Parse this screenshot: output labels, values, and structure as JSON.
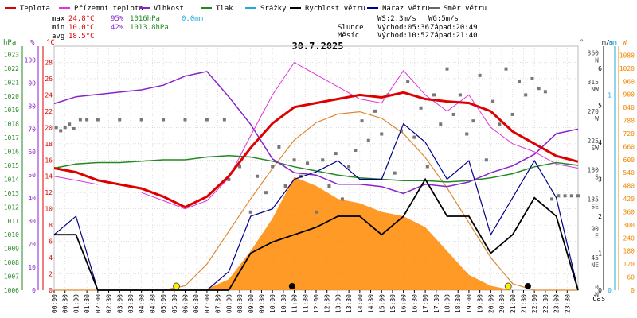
{
  "chart_data": {
    "type": "line",
    "title": "30.7.2025",
    "legend": [
      {
        "name": "Teplota",
        "color": "#dd0000"
      },
      {
        "name": "Přízemní teplota",
        "color": "#dd33dd"
      },
      {
        "name": "Vlhkost",
        "color": "#8822cc"
      },
      {
        "name": "Tlak",
        "color": "#228822"
      },
      {
        "name": "Srážky",
        "color": "#22aadd"
      },
      {
        "name": "Rychlost větru",
        "color": "#000000"
      },
      {
        "name": "Náraz větru",
        "color": "#000088"
      },
      {
        "name": "Směr větru",
        "color": "#666666"
      }
    ],
    "stats": [
      {
        "label": "max",
        "temp": "24.8°C",
        "hum": "95%",
        "pres": "1016hPa",
        "rain": "0.0mm"
      },
      {
        "label": "min",
        "temp": "10.0°C",
        "hum": "42%",
        "pres": "1013.8hPa",
        "rain": ""
      },
      {
        "label": "avg",
        "temp": "18.5°C",
        "hum": "",
        "pres": "",
        "rain": ""
      }
    ],
    "wind_info": {
      "ws": "WS:2.3m/s",
      "wg": "WG:5m/s"
    },
    "sun_info": {
      "label": "Slunce",
      "rise": "Východ:05:36",
      "set": "Západ:20:49"
    },
    "moon_info": {
      "label": "Měsíc",
      "rise": "Východ:10:52",
      "set": "Západ:21:40"
    },
    "axes": {
      "hpa": {
        "label": "hPa",
        "color": "#228822",
        "ticks": [
          1006,
          1007,
          1008,
          1009,
          1010,
          1011,
          1012,
          1013,
          1014,
          1015,
          1016,
          1017,
          1018,
          1019,
          1020,
          1021,
          1022,
          1023
        ]
      },
      "percent": {
        "label": "%",
        "color": "#8822cc",
        "ticks": [
          0,
          10,
          20,
          30,
          40,
          50,
          60,
          70,
          80,
          90,
          100
        ]
      },
      "celsius": {
        "label": "°C",
        "color": "#dd0000",
        "ticks": [
          0,
          2,
          4,
          6,
          8,
          10,
          12,
          14,
          16,
          18,
          20,
          22,
          24,
          26,
          28
        ]
      },
      "direction": {
        "label": "°",
        "color": "#444444",
        "ticks": [
          {
            "deg": "0",
            "dir": "N"
          },
          {
            "deg": "45",
            "dir": "NE"
          },
          {
            "deg": "90",
            "dir": "E"
          },
          {
            "deg": "135",
            "dir": "SE"
          },
          {
            "deg": "180",
            "dir": "S"
          },
          {
            "deg": "225",
            "dir": "SW"
          },
          {
            "deg": "270",
            "dir": "W"
          },
          {
            "deg": "315",
            "dir": "NW"
          },
          {
            "deg": "360",
            "dir": "N"
          }
        ]
      },
      "ms": {
        "label": "m/s",
        "color": "#000000",
        "ticks": [
          0,
          1,
          2,
          3,
          4,
          5,
          6
        ]
      },
      "mm": {
        "label": "mm",
        "color": "#22aadd",
        "ticks": [
          0,
          1
        ]
      },
      "w": {
        "label": "W",
        "color": "#ee8800",
        "ticks": [
          0,
          60,
          120,
          180,
          240,
          300,
          360,
          420,
          480,
          540,
          600,
          660,
          720,
          780,
          840,
          900,
          960,
          1020,
          1080
        ]
      },
      "x_label": "čas",
      "x_ticks": [
        "00:00",
        "00:30",
        "01:00",
        "01:30",
        "02:00",
        "02:30",
        "03:00",
        "03:30",
        "04:00",
        "04:30",
        "05:00",
        "05:30",
        "06:00",
        "06:30",
        "07:00",
        "07:30",
        "08:00",
        "08:30",
        "09:00",
        "09:30",
        "10:00",
        "10:30",
        "11:00",
        "11:30",
        "12:00",
        "12:30",
        "13:00",
        "13:30",
        "14:00",
        "14:30",
        "15:00",
        "15:30",
        "16:00",
        "16:30",
        "17:00",
        "17:30",
        "18:00",
        "18:30",
        "19:00",
        "19:30",
        "20:00",
        "20:30",
        "21:00",
        "21:30",
        "22:00",
        "22:30",
        "23:00",
        "23:30"
      ]
    },
    "hours": [
      0,
      1,
      2,
      3,
      4,
      5,
      6,
      7,
      8,
      9,
      10,
      11,
      12,
      13,
      14,
      15,
      16,
      17,
      18,
      19,
      20,
      21,
      22,
      23,
      24
    ],
    "series": [
      {
        "name": "Teplota",
        "unit": "°C",
        "values": [
          15,
          14.5,
          13.5,
          13,
          12.5,
          11.5,
          10.2,
          11.5,
          14,
          17.5,
          20.5,
          22.5,
          23,
          23.5,
          24,
          23.7,
          24.3,
          23.5,
          23.2,
          23,
          22,
          19.5,
          18,
          16.5,
          15.8
        ]
      },
      {
        "name": "Přízemní teplota",
        "unit": "°C",
        "values": [
          14,
          13.5,
          13,
          null,
          12,
          11,
          10,
          11,
          13.8,
          19,
          24,
          28,
          26.5,
          25,
          23.5,
          23,
          27,
          24,
          22,
          24,
          20,
          18,
          17,
          15.5,
          15
        ]
      },
      {
        "name": "Vlhkost",
        "unit": "%",
        "values": [
          81,
          84,
          85,
          86,
          87,
          89,
          93,
          95,
          84,
          72,
          57,
          51,
          50,
          46,
          46,
          45,
          42,
          46,
          45,
          47,
          51,
          54,
          59,
          68,
          70
        ]
      },
      {
        "name": "Tlak",
        "unit": "hPa",
        "values": [
          1014.8,
          1015.1,
          1015.2,
          1015.2,
          1015.3,
          1015.4,
          1015.4,
          1015.6,
          1015.7,
          1015.6,
          1015.3,
          1014.9,
          1014.6,
          1014.3,
          1014.1,
          1014.0,
          1013.9,
          1013.9,
          1013.8,
          1013.9,
          1014.1,
          1014.4,
          1014.9,
          1015.2,
          1015.0
        ]
      },
      {
        "name": "Rychlost větru",
        "unit": "m/s",
        "values": [
          1.5,
          1.5,
          0,
          0,
          0,
          0,
          0,
          0,
          0,
          1,
          1.3,
          1.5,
          1.7,
          2,
          2,
          1.5,
          2,
          3,
          2,
          2,
          1,
          1.5,
          2.5,
          2,
          0
        ]
      },
      {
        "name": "Náraz větru",
        "unit": "m/s",
        "values": [
          1.5,
          2,
          0,
          0,
          0,
          0,
          0,
          0,
          0.5,
          2,
          2.2,
          3,
          3.2,
          3.5,
          3,
          3,
          4.5,
          4,
          3,
          3.5,
          1.5,
          2.5,
          3.5,
          2.5,
          0
        ]
      },
      {
        "name": "Sluneční záření",
        "unit": "W",
        "values": [
          0,
          0,
          0,
          0,
          0,
          0,
          0,
          5,
          50,
          180,
          330,
          520,
          480,
          420,
          400,
          360,
          340,
          290,
          180,
          70,
          20,
          0,
          0,
          0,
          0
        ]
      },
      {
        "name": "Teoretické záření",
        "unit": "W",
        "values": [
          0,
          0,
          0,
          0,
          0,
          0,
          20,
          120,
          270,
          420,
          560,
          690,
          770,
          810,
          820,
          790,
          720,
          610,
          470,
          310,
          150,
          30,
          0,
          0,
          0
        ]
      }
    ],
    "wind_direction_deg": [
      [
        0.1,
        250
      ],
      [
        0.3,
        245
      ],
      [
        0.5,
        250
      ],
      [
        0.7,
        255
      ],
      [
        0.9,
        248
      ],
      [
        1.2,
        262
      ],
      [
        1.5,
        262
      ],
      [
        2,
        262
      ],
      [
        3,
        262
      ],
      [
        4,
        262
      ],
      [
        5,
        262
      ],
      [
        6,
        262
      ],
      [
        7,
        262
      ],
      [
        7.8,
        262
      ],
      [
        8,
        170
      ],
      [
        8.5,
        190
      ],
      [
        9,
        120
      ],
      [
        9.3,
        175
      ],
      [
        9.7,
        150
      ],
      [
        10,
        190
      ],
      [
        10.3,
        220
      ],
      [
        10.6,
        160
      ],
      [
        11,
        200
      ],
      [
        11.3,
        175
      ],
      [
        11.6,
        195
      ],
      [
        12,
        120
      ],
      [
        12.3,
        200
      ],
      [
        12.6,
        160
      ],
      [
        12.9,
        210
      ],
      [
        13.2,
        140
      ],
      [
        13.5,
        190
      ],
      [
        13.8,
        215
      ],
      [
        14.1,
        260
      ],
      [
        14.4,
        230
      ],
      [
        14.7,
        275
      ],
      [
        15,
        240
      ],
      [
        15.3,
        300
      ],
      [
        15.6,
        180
      ],
      [
        15.9,
        245
      ],
      [
        16.2,
        320
      ],
      [
        16.5,
        235
      ],
      [
        16.8,
        280
      ],
      [
        17.1,
        190
      ],
      [
        17.4,
        300
      ],
      [
        17.7,
        255
      ],
      [
        18,
        340
      ],
      [
        18.3,
        270
      ],
      [
        18.6,
        300
      ],
      [
        18.9,
        240
      ],
      [
        19.2,
        260
      ],
      [
        19.5,
        330
      ],
      [
        19.8,
        200
      ],
      [
        20.1,
        290
      ],
      [
        20.4,
        255
      ],
      [
        20.7,
        340
      ],
      [
        21,
        270
      ],
      [
        21.3,
        320
      ],
      [
        21.6,
        300
      ],
      [
        21.9,
        325
      ],
      [
        22.2,
        310
      ],
      [
        22.5,
        305
      ],
      [
        22.8,
        140
      ],
      [
        23.1,
        145
      ],
      [
        23.4,
        145
      ],
      [
        23.7,
        145
      ],
      [
        24,
        145
      ]
    ],
    "sun_markers": [
      5.6,
      20.8
    ],
    "moon_markers": [
      10.9,
      21.7
    ]
  }
}
